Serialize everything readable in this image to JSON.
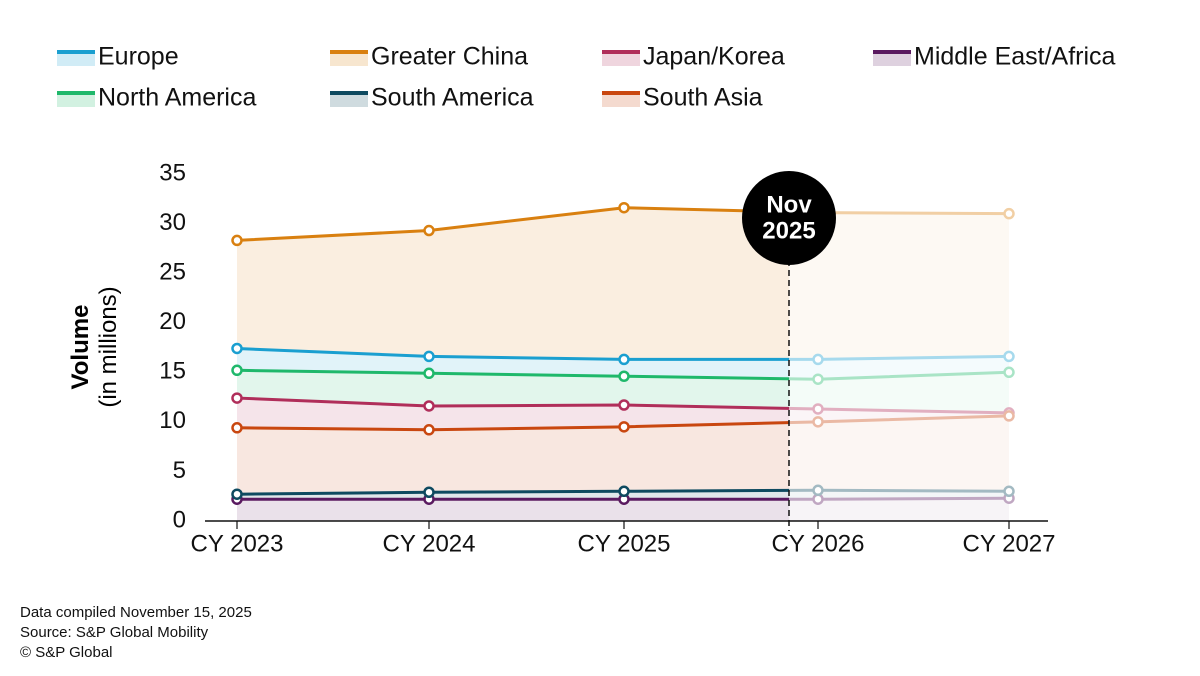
{
  "chart_data": {
    "type": "line",
    "y_label": "Volume",
    "y_label_sub": "(in millions)",
    "categories": [
      "CY 2023",
      "CY 2024",
      "CY 2025",
      "CY 2026",
      "CY 2027"
    ],
    "series": [
      {
        "name": "Europe",
        "color": "#1a9fd0",
        "values": [
          17.4,
          16.6,
          16.3,
          16.3,
          16.6
        ]
      },
      {
        "name": "Greater China",
        "color": "#d98010",
        "values": [
          28.3,
          29.3,
          31.6,
          31.1,
          31.0
        ]
      },
      {
        "name": "Japan/Korea",
        "color": "#b02e5a",
        "values": [
          12.4,
          11.6,
          11.7,
          11.3,
          10.9
        ]
      },
      {
        "name": "Middle East/Africa",
        "color": "#5a1a60",
        "values": [
          2.2,
          2.2,
          2.2,
          2.2,
          2.3
        ]
      },
      {
        "name": "North America",
        "color": "#1fb86b",
        "values": [
          15.2,
          14.9,
          14.6,
          14.3,
          15.0
        ]
      },
      {
        "name": "South America",
        "color": "#0e4a60",
        "values": [
          2.7,
          2.9,
          3.0,
          3.1,
          3.0
        ]
      },
      {
        "name": "South Asia",
        "color": "#c94710",
        "values": [
          9.4,
          9.2,
          9.5,
          10.0,
          10.6
        ]
      }
    ],
    "ylim": [
      0,
      35
    ],
    "yticks": [
      0,
      5,
      10,
      15,
      20,
      25,
      30,
      35
    ],
    "annotation_lines": [
      "Nov",
      "2025"
    ],
    "footnotes": [
      "Data compiled November 15, 2025",
      "Source: S&P Global Mobility",
      "© S&P Global"
    ]
  }
}
